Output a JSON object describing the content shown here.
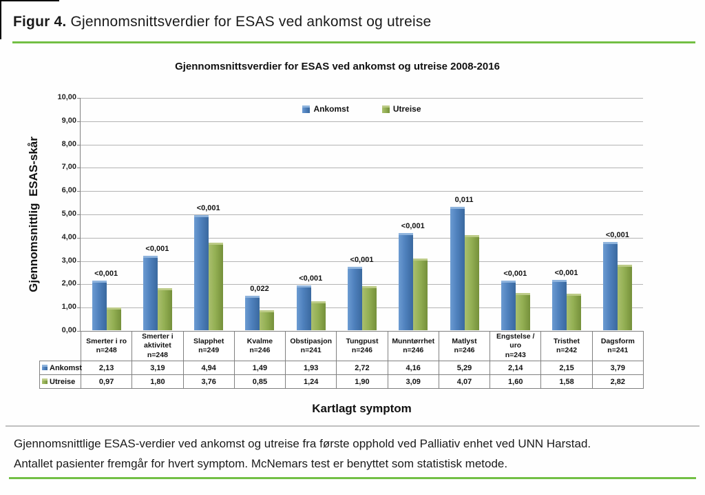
{
  "figure": {
    "label": "Figur 4.",
    "title_rest": "Gjennomsnittsverdier for ESAS ved ankomst og utreise"
  },
  "chart_data": {
    "type": "bar",
    "title": "Gjennomsnittsverdier for ESAS ved ankomst og utreise 2008-2016",
    "xlabel": "Kartlagt symptom",
    "ylabel": "Gjennomsnittlig  ESAS-skår",
    "ylim": [
      0,
      10
    ],
    "ytick_step": 1,
    "ytick_labels_top_down": [
      "10,00",
      "9,00",
      "8,00",
      "7,00",
      "6,00",
      "5,00",
      "4,00",
      "3,00",
      "2,00",
      "1,00",
      "0,00"
    ],
    "grid": true,
    "legend_position": "top-center-inside",
    "categories": [
      "Smerter i ro",
      "Smerter i aktivitet",
      "Slapphet",
      "Kvalme",
      "Obstipasjon",
      "Tungpust",
      "Munntørrhet",
      "Matlyst",
      "Engstelse / uro",
      "Tristhet",
      "Dagsform"
    ],
    "category_n": [
      "n=248",
      "n=248",
      "n=249",
      "n=246",
      "n=241",
      "n=246",
      "n=246",
      "n=246",
      "n=243",
      "n=242",
      "n=241"
    ],
    "p_values": [
      "<0,001",
      "<0,001",
      "<0,001",
      "0,022",
      "<0,001",
      "<0,001",
      "<0,001",
      "0,011",
      "<0,001",
      "<0,001",
      "<0,001"
    ],
    "series": [
      {
        "name": "Ankomst",
        "color": "#4F81BD",
        "values": [
          2.13,
          3.19,
          4.94,
          1.49,
          1.93,
          2.72,
          4.16,
          5.29,
          2.14,
          2.15,
          3.79
        ],
        "labels": [
          "2,13",
          "3,19",
          "4,94",
          "1,49",
          "1,93",
          "2,72",
          "4,16",
          "5,29",
          "2,14",
          "2,15",
          "3,79"
        ]
      },
      {
        "name": "Utreise",
        "color": "#9BBB59",
        "values": [
          0.97,
          1.8,
          3.76,
          0.85,
          1.24,
          1.9,
          3.09,
          4.07,
          1.6,
          1.58,
          2.82
        ],
        "labels": [
          "0,97",
          "1,80",
          "3,76",
          "0,85",
          "1,24",
          "1,90",
          "3,09",
          "4,07",
          "1,60",
          "1,58",
          "2,82"
        ]
      }
    ]
  },
  "caption": {
    "line1": "Gjennomsnittlige ESAS-verdier ved ankomst og utreise fra første opphold ved Palliativ enhet ved UNN Harstad.",
    "line2": "Antallet pasienter fremgår for hvert symptom. McNemars test er benyttet som statistisk metode."
  },
  "colors": {
    "accent_green_rule": "#72BF44",
    "divider_gray": "#BFBFBF",
    "bar_blue": "#4F81BD",
    "bar_green": "#9BBB59",
    "gridline": "#B3B3B3",
    "axis_line": "#7F7F7F"
  }
}
